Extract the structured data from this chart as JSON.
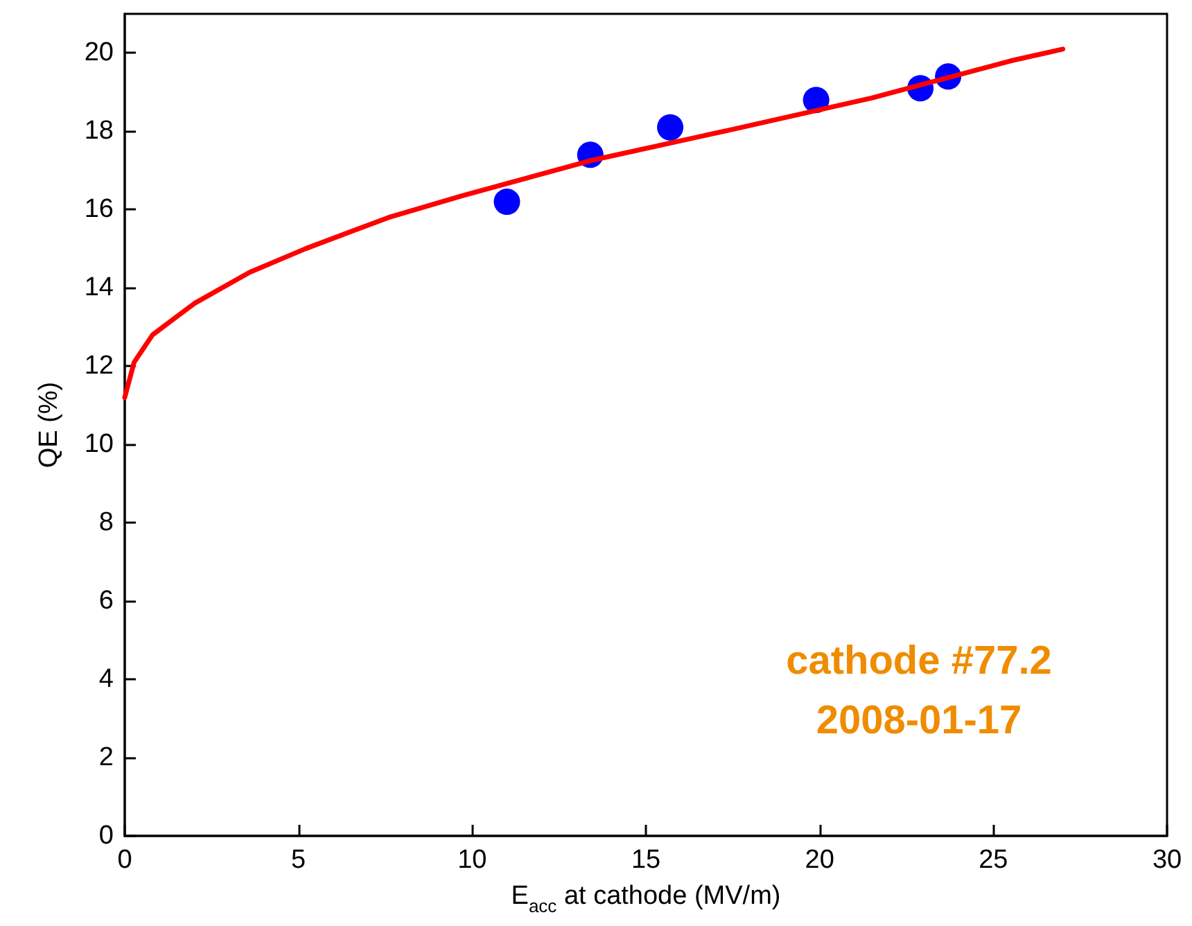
{
  "chart_data": {
    "type": "scatter",
    "xlabel": "E$_{acc}$ at cathode (MV/m)",
    "ylabel": "QE (%)",
    "xlim": [
      0,
      30
    ],
    "xticks": [
      0,
      5,
      10,
      15,
      20,
      25,
      30
    ],
    "ylim": [
      0,
      21
    ],
    "yticks": [
      0,
      2,
      4,
      6,
      8,
      10,
      12,
      14,
      16,
      18,
      20
    ],
    "grid": false,
    "marker": "circle",
    "series": [
      {
        "color": "#0000ff",
        "x": [
          11.0,
          13.4,
          15.7,
          19.9,
          22.9,
          23.7
        ],
        "values": [
          16.2,
          17.4,
          18.1,
          18.8,
          19.1,
          19.4
        ]
      },
      {
        "type": "line",
        "color": "#ff0000",
        "marker": "none",
        "line_style": "solid",
        "x": [
          0,
          0.27,
          0.8,
          2,
          3.6,
          5.2,
          7.6,
          9.7,
          13.4,
          17.5,
          21.5,
          25.5,
          27
        ],
        "values": [
          11.2,
          12.1,
          12.8,
          13.6,
          14.4,
          15.0,
          15.8,
          16.35,
          17.25,
          18.05,
          18.85,
          19.8,
          20.1
        ]
      }
    ],
    "annotations": [
      "cathode #77.2",
      "2008-01-17"
    ]
  }
}
